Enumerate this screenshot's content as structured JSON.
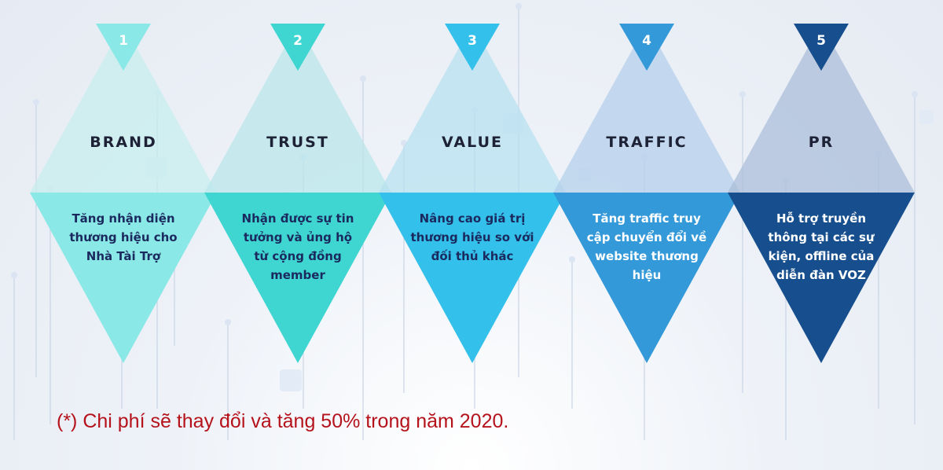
{
  "steps": [
    {
      "number": "1",
      "title": "BRAND",
      "description": "Tăng nhận diện thương hiệu cho Nhà Tài Trợ",
      "color": "#8ae8e6",
      "color_light": "#c6eeee",
      "text_color": "#1b2a5e"
    },
    {
      "number": "2",
      "title": "TRUST",
      "description": "Nhận được sự tin tưởng và ủng hộ từ cộng đồng member",
      "color": "#3fd6d2",
      "color_light": "#b8e6ea",
      "text_color": "#1b2a5e"
    },
    {
      "number": "3",
      "title": "VALUE",
      "description": "Nâng cao giá trị thương hiệu so với đối thủ khác",
      "color": "#33c1ec",
      "color_light": "#b6e0f0",
      "text_color": "#1b2a5e"
    },
    {
      "number": "4",
      "title": "TRAFFIC",
      "description": "Tăng traffic truy cập chuyển đổi về website thương hiệu",
      "color": "#3399d9",
      "color_light": "#b3cfea",
      "text_color": "#ffffff"
    },
    {
      "number": "5",
      "title": "PR",
      "description": "Hỗ trợ truyền thông tại các sự kiện, offline của diễn đàn VOZ",
      "color": "#174f8e",
      "color_light": "#a9bcd8",
      "text_color": "#ffffff"
    }
  ],
  "footnote": "(*) Chi phí sẽ thay đổi và tăng 50% trong năm 2020."
}
